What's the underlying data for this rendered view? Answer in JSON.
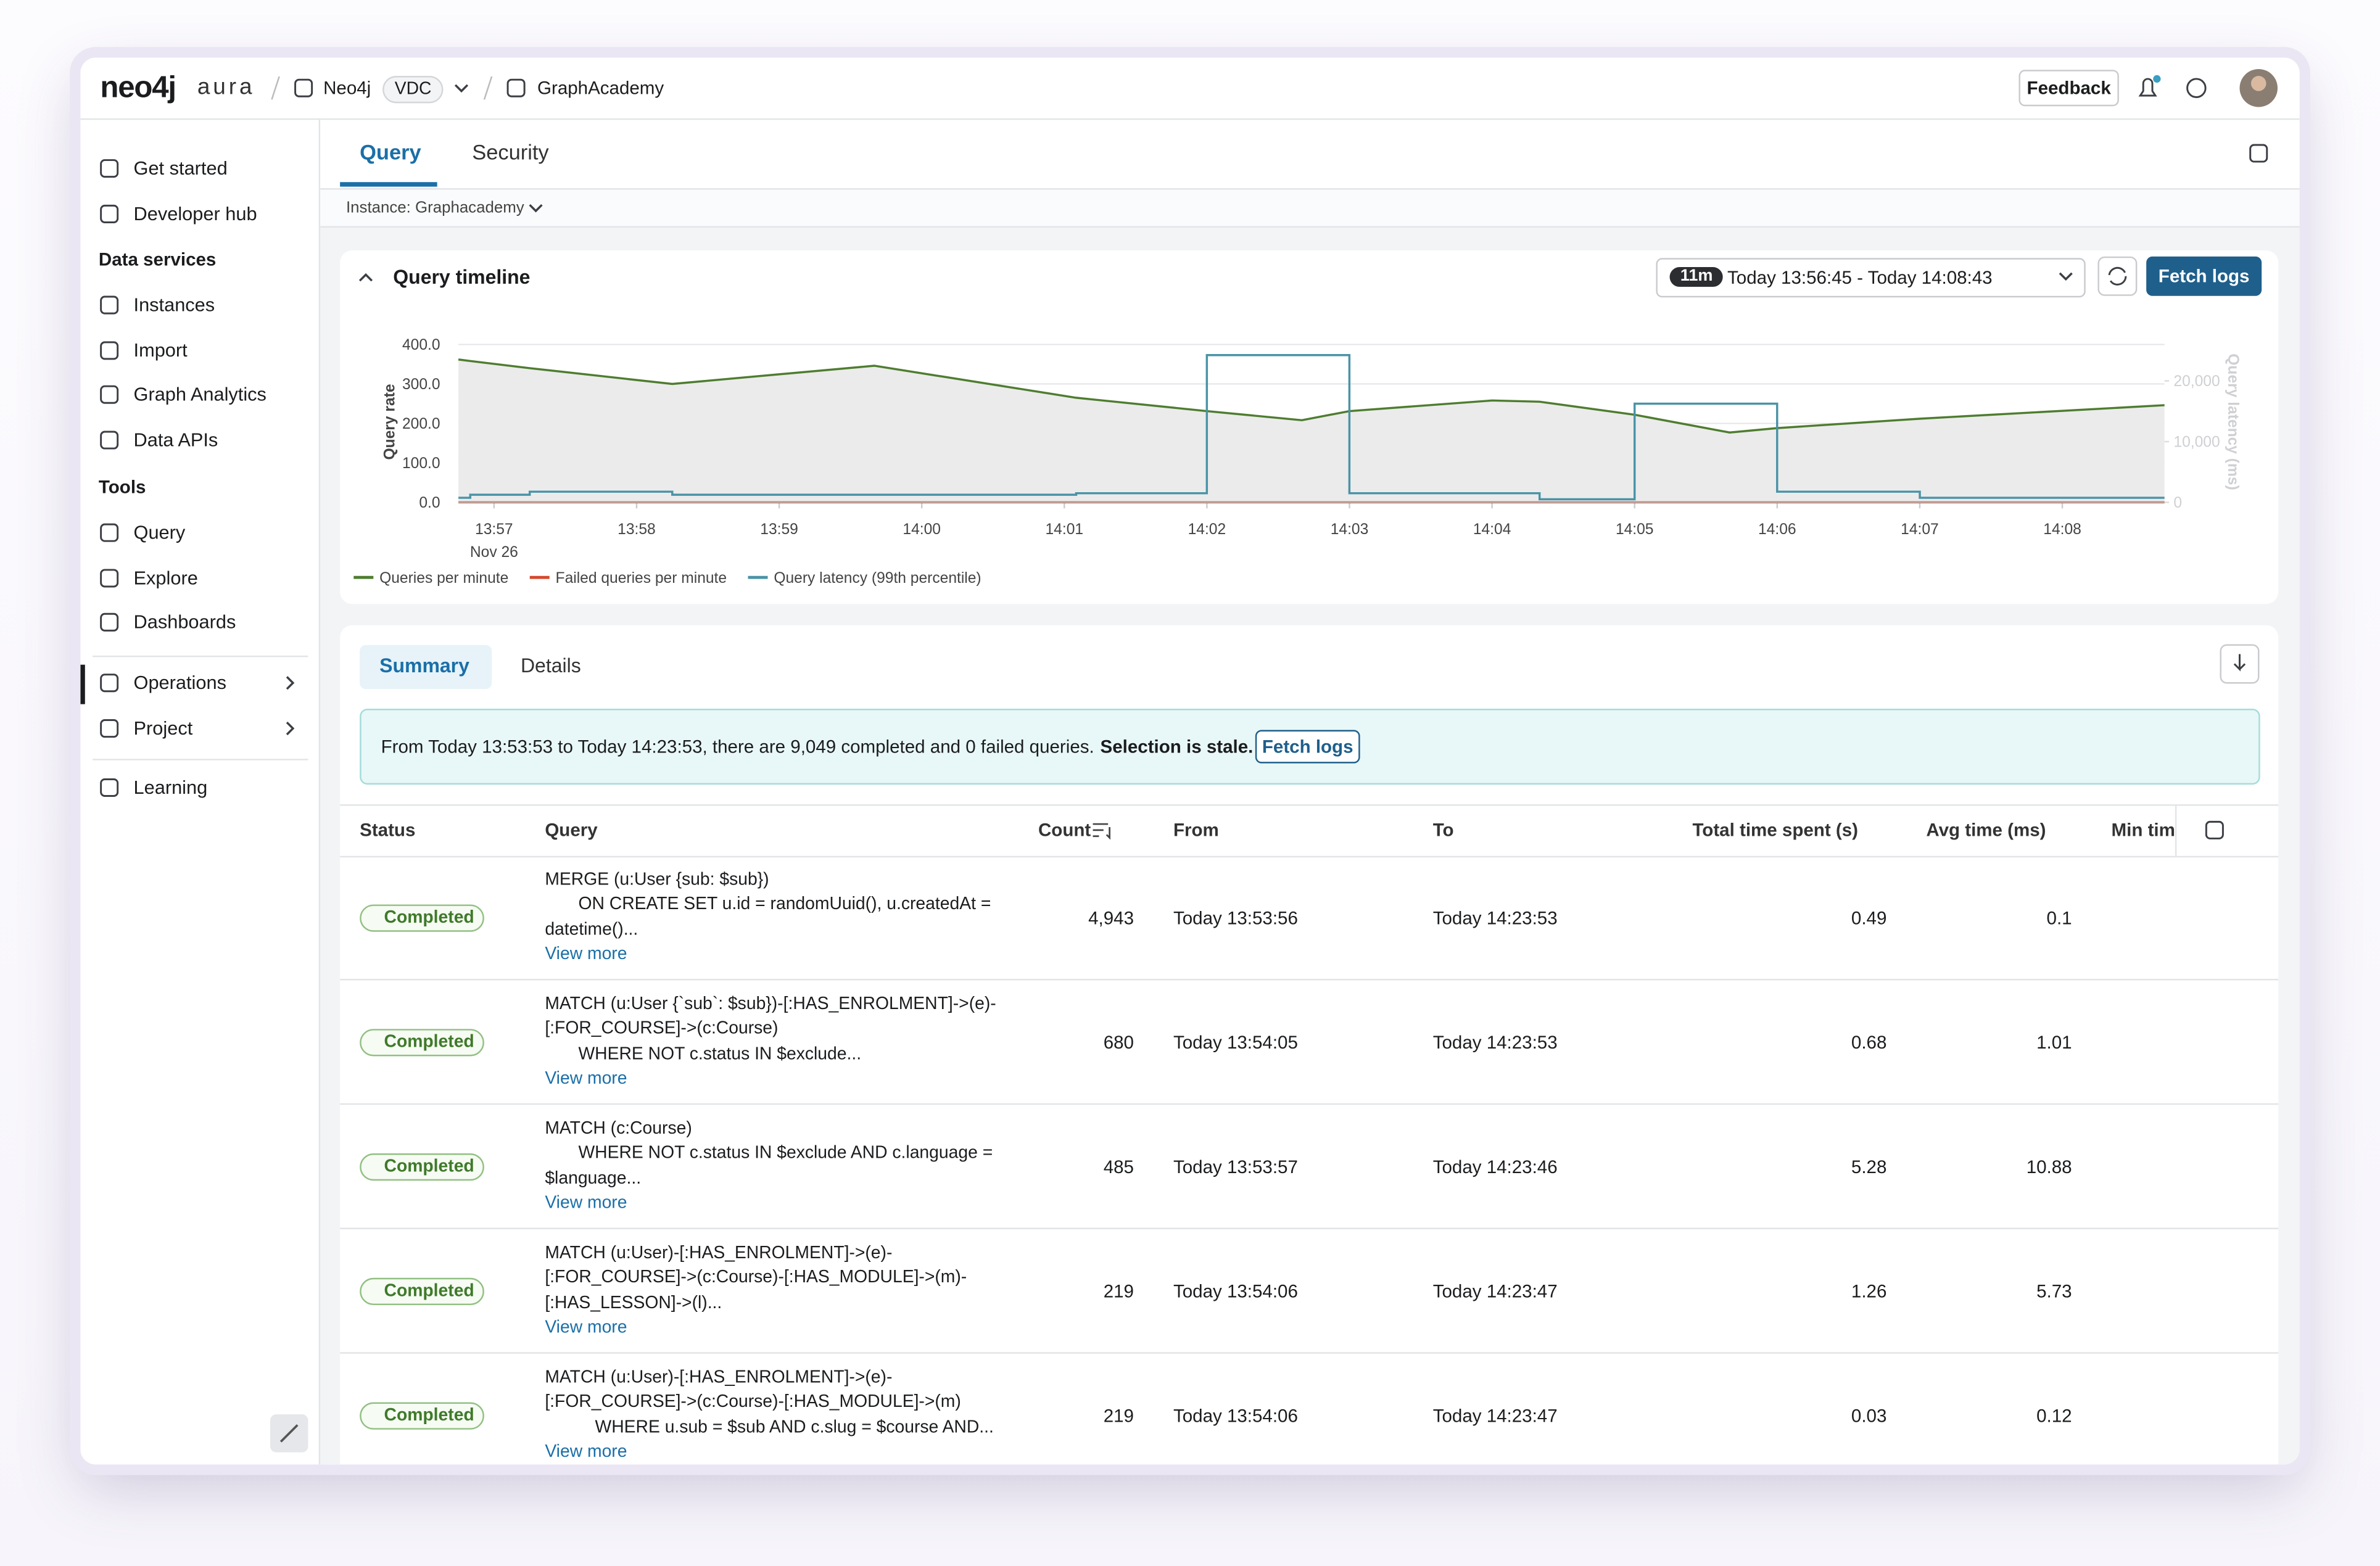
{
  "header": {
    "logo": "neo4j",
    "logo_suffix": "aura",
    "org": "Neo4j",
    "org_badge": "VDC",
    "project": "GraphAcademy",
    "feedback": "Feedback"
  },
  "sidebar": {
    "top": [
      "Get started",
      "Developer hub"
    ],
    "sections": [
      {
        "title": "Data services",
        "items": [
          "Instances",
          "Import",
          "Graph Analytics",
          "Data APIs"
        ]
      },
      {
        "title": "Tools",
        "items": [
          "Query",
          "Explore",
          "Dashboards"
        ]
      }
    ],
    "expandable": [
      "Operations",
      "Project"
    ],
    "bottom": [
      "Learning"
    ]
  },
  "tabs": [
    "Query",
    "Security"
  ],
  "instance": "Instance: Graphacademy",
  "timeline": {
    "title": "Query timeline",
    "range_badge": "11m",
    "range": "Today 13:56:45 - Today 14:08:43",
    "fetch": "Fetch logs",
    "chart_data": {
      "type": "line",
      "ylabel": "Query rate",
      "y2label": "Query latency (ms)",
      "date_label": "Nov 26",
      "x": [
        "13:56:45",
        "13:56:50",
        "13:56:50",
        "13:57:15",
        "13:57:15",
        "13:58:15",
        "13:58:15",
        "13:59:40",
        "14:01:05",
        "14:01:05",
        "14:02:00",
        "14:02:00",
        "14:02:40",
        "14:03:00",
        "14:03:00",
        "14:04:00",
        "14:04:20",
        "14:04:20",
        "14:05:00",
        "14:05:00",
        "14:05:40",
        "14:06:00",
        "14:06:00",
        "14:07:00",
        "14:07:00",
        "14:08:43"
      ],
      "xlim": [
        "13:56:45",
        "14:08:43"
      ],
      "xticks": [
        "13:57",
        "13:58",
        "13:59",
        "14:00",
        "14:01",
        "14:02",
        "14:03",
        "14:04",
        "14:05",
        "14:06",
        "14:07",
        "14:08"
      ],
      "ylim": [
        0,
        400
      ],
      "yticks": [
        {
          "value": 0,
          "label": "0.0"
        },
        {
          "value": 100,
          "label": "100.0"
        },
        {
          "value": 200,
          "label": "200.0"
        },
        {
          "value": 300,
          "label": "300.0"
        },
        {
          "value": 400,
          "label": "400.0"
        }
      ],
      "y2lim": [
        0,
        26000
      ],
      "y2ticks": [
        0,
        {
          "value": 10000,
          "label": "10,000"
        },
        {
          "value": 20000,
          "label": "20,000"
        }
      ],
      "grid": true,
      "series": [
        {
          "name": "Queries per minute",
          "color": "#4e7d2f",
          "values": [
            362,
            358,
            358,
            340,
            340,
            300,
            300,
            346,
            265,
            265,
            231,
            231,
            208,
            231,
            231,
            258,
            255,
            255,
            222,
            222,
            177,
            188,
            188,
            212,
            212,
            246
          ]
        },
        {
          "name": "Failed queries per minute",
          "color": "#d4482c",
          "values": [
            0,
            0,
            0,
            0,
            0,
            0,
            0,
            0,
            0,
            0,
            0,
            0,
            0,
            0,
            0,
            0,
            0,
            0,
            0,
            0,
            0,
            0,
            0,
            0,
            0,
            0
          ]
        },
        {
          "name": "Query latency (99th percentile)",
          "color": "#4a93a6",
          "axis": "y2",
          "values": [
            750,
            750,
            1250,
            1250,
            1750,
            1750,
            1250,
            1250,
            1250,
            1500,
            1500,
            24250,
            24250,
            24250,
            1500,
            1500,
            1500,
            500,
            500,
            16250,
            16250,
            16250,
            1750,
            1750,
            750,
            750
          ]
        }
      ]
    }
  },
  "summary": {
    "tabs": [
      "Summary",
      "Details"
    ],
    "banner": "From Today 13:53:53 to Today 14:23:53, there are 9,049 completed and 0 failed queries.",
    "banner_bold": "Selection is stale.",
    "banner_button": "Fetch logs",
    "columns": [
      "Status",
      "Query",
      "Count",
      "From",
      "To",
      "Total time spent (s)",
      "Avg time (ms)",
      "Min tim"
    ],
    "rows": [
      {
        "status": "Completed",
        "query": [
          "MERGE (u:User {sub: $sub})",
          "ON CREATE SET u.id = randomUuid(), u.createdAt =",
          "datetime()..."
        ],
        "more": "View more",
        "count": "4,943",
        "from": "Today 13:53:56",
        "to": "Today 14:23:53",
        "total": "0.49",
        "avg": "0.1"
      },
      {
        "status": "Completed",
        "query": [
          "MATCH (u:User {`sub`: $sub})-[:HAS_ENROLMENT]->(e)-",
          "[:FOR_COURSE]->(c:Course)",
          "WHERE NOT c.status IN $exclude..."
        ],
        "more": "View more",
        "count": "680",
        "from": "Today 13:54:05",
        "to": "Today 14:23:53",
        "total": "0.68",
        "avg": "1.01"
      },
      {
        "status": "Completed",
        "query": [
          "MATCH (c:Course)",
          "WHERE NOT c.status IN $exclude AND c.language =",
          "$language..."
        ],
        "more": "View more",
        "count": "485",
        "from": "Today 13:53:57",
        "to": "Today 14:23:46",
        "total": "5.28",
        "avg": "10.88"
      },
      {
        "status": "Completed",
        "query": [
          "MATCH (u:User)-[:HAS_ENROLMENT]->(e)-",
          "[:FOR_COURSE]->(c:Course)-[:HAS_MODULE]->(m)-",
          "[:HAS_LESSON]->(l)..."
        ],
        "more": "View more",
        "count": "219",
        "from": "Today 13:54:06",
        "to": "Today 14:23:47",
        "total": "1.26",
        "avg": "5.73"
      },
      {
        "status": "Completed",
        "query": [
          "MATCH (u:User)-[:HAS_ENROLMENT]->(e)-",
          "[:FOR_COURSE]->(c:Course)-[:HAS_MODULE]->(m)",
          "WHERE u.sub = $sub AND c.slug = $course AND..."
        ],
        "more": "View more",
        "count": "219",
        "from": "Today 13:54:06",
        "to": "Today 14:23:47",
        "total": "0.03",
        "avg": "0.12"
      }
    ]
  }
}
